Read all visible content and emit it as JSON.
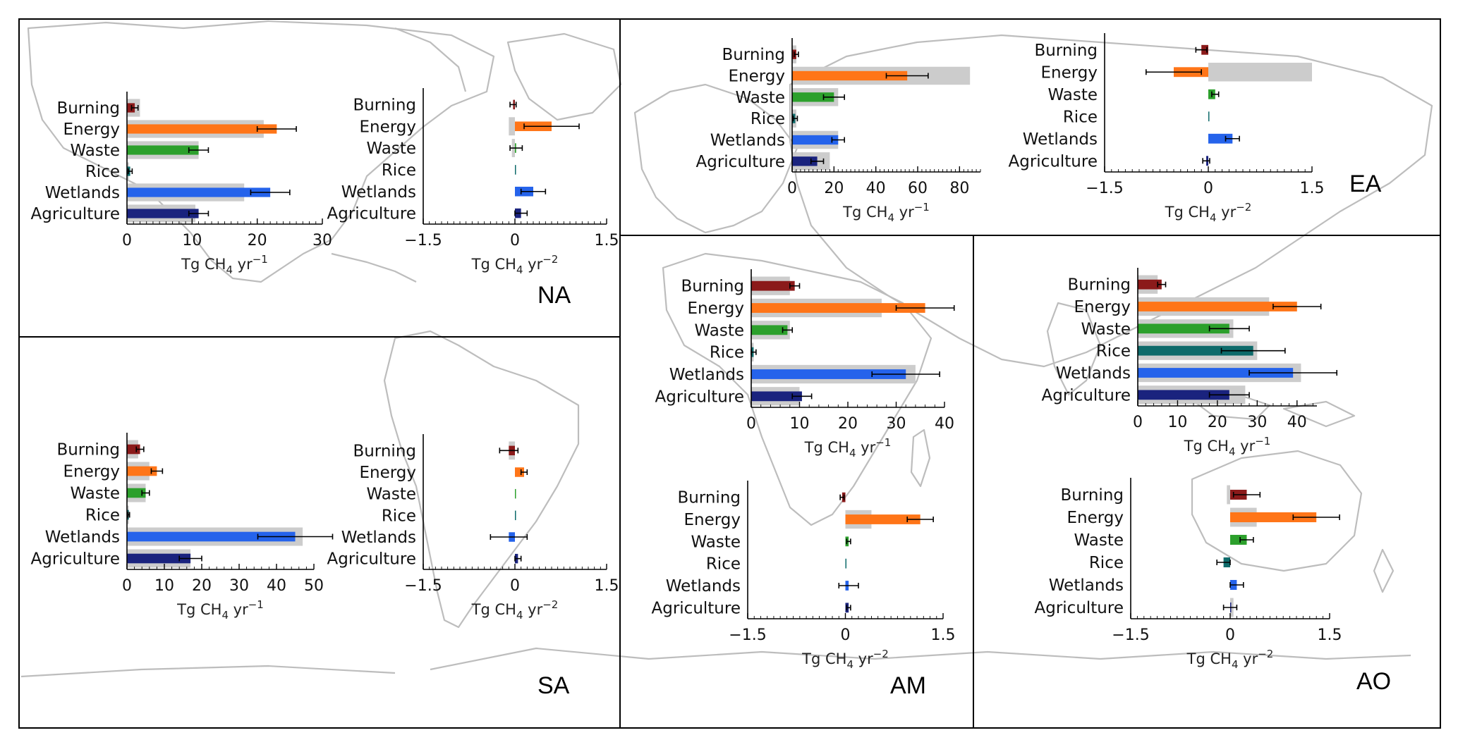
{
  "figure": {
    "background_land_color": "#bdbdbd",
    "frame_color": "#000000"
  },
  "colors": {
    "prior": "#cccccc",
    "Burning": "#8b1a1a",
    "Energy": "#ff7518",
    "Waste": "#2ca02c",
    "Rice": "#0e6b6b",
    "Wetlands": "#2563eb",
    "Agriculture": "#1a237e",
    "errorbar": "#000000"
  },
  "categories": [
    "Burning",
    "Energy",
    "Waste",
    "Rice",
    "Wetlands",
    "Agriculture"
  ],
  "regions": [
    {
      "label": "NA"
    },
    {
      "label": "EA"
    },
    {
      "label": "SA"
    },
    {
      "label": "AM"
    },
    {
      "label": "AO"
    }
  ],
  "chart_data": [
    {
      "type": "bar",
      "region": "NA",
      "panel": "emissions",
      "categories": [
        "Burning",
        "Energy",
        "Waste",
        "Rice",
        "Wetlands",
        "Agriculture"
      ],
      "xlabel": "Tg CH4 yr-1",
      "xlim": [
        0,
        30
      ],
      "xticks": [
        0,
        10,
        20,
        30
      ],
      "series": [
        {
          "role": "prior",
          "values": [
            2,
            21,
            11,
            0.3,
            18,
            10.5
          ]
        },
        {
          "role": "posterior",
          "values": [
            1.2,
            23,
            11,
            0.5,
            22,
            11
          ],
          "errors": [
            0.5,
            3,
            1.5,
            0.3,
            3,
            1.5
          ]
        }
      ]
    },
    {
      "type": "bar",
      "region": "NA",
      "panel": "trends",
      "categories": [
        "Burning",
        "Energy",
        "Waste",
        "Rice",
        "Wetlands",
        "Agriculture"
      ],
      "xlabel": "Tg CH4 yr-2",
      "xlim": [
        -1.5,
        1.5
      ],
      "xticks": [
        -1.5,
        0.0,
        1.5
      ],
      "series": [
        {
          "role": "prior",
          "values": [
            0.0,
            -0.1,
            -0.05,
            0.0,
            0.0,
            0.0
          ]
        },
        {
          "role": "posterior",
          "values": [
            -0.03,
            0.6,
            0.02,
            0.0,
            0.3,
            0.1
          ],
          "errors": [
            0.05,
            0.45,
            0.1,
            0.0,
            0.2,
            0.1
          ]
        }
      ]
    },
    {
      "type": "bar",
      "region": "EA",
      "panel": "emissions",
      "categories": [
        "Burning",
        "Energy",
        "Waste",
        "Rice",
        "Wetlands",
        "Agriculture"
      ],
      "xlabel": "Tg CH4 yr-1",
      "xlim": [
        0,
        90
      ],
      "xticks": [
        0,
        20,
        40,
        60,
        80
      ],
      "series": [
        {
          "role": "prior",
          "values": [
            2,
            85,
            22,
            2,
            22,
            18
          ]
        },
        {
          "role": "posterior",
          "values": [
            2,
            55,
            20,
            1.5,
            22,
            12
          ],
          "errors": [
            1,
            10,
            5,
            1,
            3,
            3
          ]
        }
      ]
    },
    {
      "type": "bar",
      "region": "EA",
      "panel": "trends",
      "categories": [
        "Burning",
        "Energy",
        "Waste",
        "Rice",
        "Wetlands",
        "Agriculture"
      ],
      "xlabel": "Tg CH4 yr-2",
      "xlim": [
        -1.5,
        1.5
      ],
      "xticks": [
        -1.5,
        0.0,
        1.5
      ],
      "series": [
        {
          "role": "prior",
          "values": [
            0.0,
            1.5,
            0.0,
            0.0,
            0.0,
            0.0
          ]
        },
        {
          "role": "posterior",
          "values": [
            -0.1,
            -0.5,
            0.1,
            0.0,
            0.35,
            -0.03
          ],
          "errors": [
            0.08,
            0.4,
            0.05,
            0.0,
            0.1,
            0.05
          ]
        }
      ]
    },
    {
      "type": "bar",
      "region": "SA",
      "panel": "emissions",
      "categories": [
        "Burning",
        "Energy",
        "Waste",
        "Rice",
        "Wetlands",
        "Agriculture"
      ],
      "xlabel": "Tg CH4 yr-1",
      "xlim": [
        0,
        50
      ],
      "xticks": [
        0,
        10,
        20,
        30,
        40,
        50
      ],
      "series": [
        {
          "role": "prior",
          "values": [
            3,
            6,
            5,
            0.5,
            47,
            17
          ]
        },
        {
          "role": "posterior",
          "values": [
            3.5,
            8,
            5,
            0.5,
            45,
            17
          ],
          "errors": [
            1,
            1.5,
            1,
            0.2,
            10,
            3
          ]
        }
      ]
    },
    {
      "type": "bar",
      "region": "SA",
      "panel": "trends",
      "categories": [
        "Burning",
        "Energy",
        "Waste",
        "Rice",
        "Wetlands",
        "Agriculture"
      ],
      "xlabel": "Tg CH4 yr-2",
      "xlim": [
        -1.5,
        1.5
      ],
      "xticks": [
        -1.5,
        0.0,
        1.5
      ],
      "series": [
        {
          "role": "prior",
          "values": [
            -0.1,
            0.0,
            0.0,
            0.0,
            0.0,
            0.0
          ]
        },
        {
          "role": "posterior",
          "values": [
            -0.1,
            0.15,
            0.0,
            0.0,
            -0.1,
            0.05
          ],
          "errors": [
            0.15,
            0.05,
            0.0,
            0.0,
            0.3,
            0.05
          ]
        }
      ]
    },
    {
      "type": "bar",
      "region": "AM",
      "panel": "emissions",
      "categories": [
        "Burning",
        "Energy",
        "Waste",
        "Rice",
        "Wetlands",
        "Agriculture"
      ],
      "xlabel": "Tg CH4 yr-1",
      "xlim": [
        0,
        40
      ],
      "xticks": [
        0,
        10,
        20,
        30,
        40
      ],
      "series": [
        {
          "role": "prior",
          "values": [
            8,
            27,
            8,
            0.5,
            34,
            10
          ]
        },
        {
          "role": "posterior",
          "values": [
            9,
            36,
            7.5,
            0.5,
            32,
            10.5
          ],
          "errors": [
            1,
            6,
            1,
            0.5,
            7,
            2
          ]
        }
      ]
    },
    {
      "type": "bar",
      "region": "AM",
      "panel": "trends",
      "categories": [
        "Burning",
        "Energy",
        "Waste",
        "Rice",
        "Wetlands",
        "Agriculture"
      ],
      "xlabel": "Tg CH4 yr-2",
      "xlim": [
        -1.5,
        1.5
      ],
      "xticks": [
        -1.5,
        0.0,
        1.5
      ],
      "series": [
        {
          "role": "prior",
          "values": [
            0.0,
            0.4,
            0.0,
            0.0,
            0.0,
            0.0
          ]
        },
        {
          "role": "posterior",
          "values": [
            -0.05,
            1.15,
            0.05,
            0.0,
            0.05,
            0.05
          ],
          "errors": [
            0.03,
            0.2,
            0.03,
            0.0,
            0.15,
            0.03
          ]
        }
      ]
    },
    {
      "type": "bar",
      "region": "AO",
      "panel": "emissions",
      "categories": [
        "Burning",
        "Energy",
        "Waste",
        "Rice",
        "Wetlands",
        "Agriculture"
      ],
      "xlabel": "Tg CH4 yr-1",
      "xlim": [
        0,
        45
      ],
      "xticks": [
        0,
        10,
        20,
        30,
        40
      ],
      "series": [
        {
          "role": "prior",
          "values": [
            5,
            33,
            24,
            30,
            41,
            27
          ]
        },
        {
          "role": "posterior",
          "values": [
            6,
            40,
            23,
            29,
            39,
            23
          ],
          "errors": [
            1,
            6,
            5,
            8,
            11,
            5
          ]
        }
      ]
    },
    {
      "type": "bar",
      "region": "AO",
      "panel": "trends",
      "categories": [
        "Burning",
        "Energy",
        "Waste",
        "Rice",
        "Wetlands",
        "Agriculture"
      ],
      "xlabel": "Tg CH4 yr-2",
      "xlim": [
        -1.5,
        1.5
      ],
      "xticks": [
        -1.5,
        0.0,
        1.5
      ],
      "series": [
        {
          "role": "prior",
          "values": [
            -0.05,
            0.4,
            0.0,
            0.0,
            0.0,
            0.05
          ]
        },
        {
          "role": "posterior",
          "values": [
            0.25,
            1.3,
            0.25,
            -0.1,
            0.1,
            0.0
          ],
          "errors": [
            0.2,
            0.35,
            0.1,
            0.1,
            0.1,
            0.1
          ]
        }
      ]
    }
  ]
}
